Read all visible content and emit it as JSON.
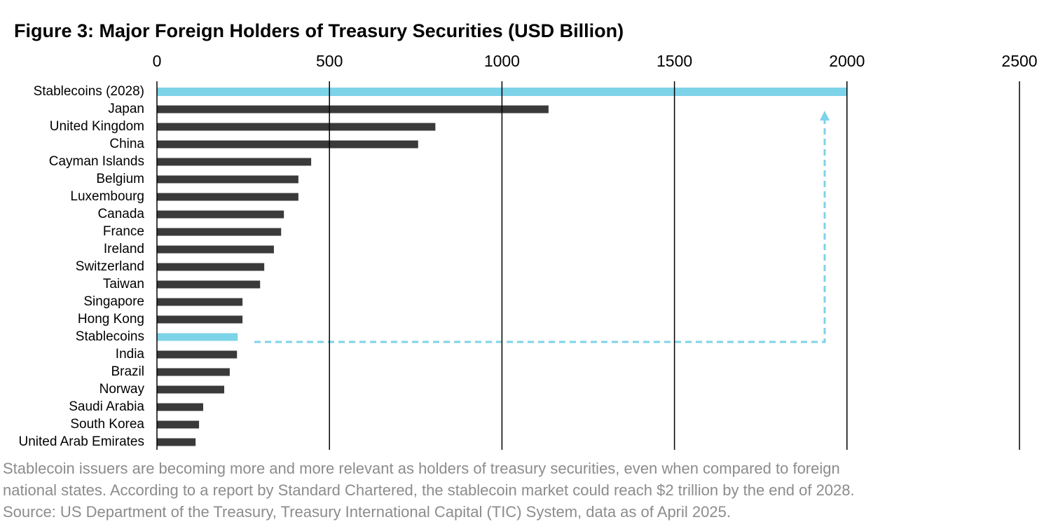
{
  "chart_data": {
    "type": "barh",
    "title": "Figure 3: Major Foreign Holders of Treasury Securities (USD Billion)",
    "categories": [
      "Stablecoins (2028)",
      "Japan",
      "United Kingdom",
      "China",
      "Cayman Islands",
      "Belgium",
      "Luxembourg",
      "Canada",
      "France",
      "Ireland",
      "Switzerland",
      "Taiwan",
      "Singapore",
      "Hong Kong",
      "Stablecoins",
      "India",
      "Brazil",
      "Norway",
      "Saudi Arabia",
      "South Korea",
      "United Arab Emirates"
    ],
    "values": [
      2000,
      1135,
      807,
      757,
      447,
      410,
      410,
      368,
      360,
      339,
      311,
      299,
      248,
      248,
      234,
      232,
      211,
      195,
      134,
      122,
      112
    ],
    "colors": [
      "#7dd3e8",
      "#3a3a3a",
      "#3a3a3a",
      "#3a3a3a",
      "#3a3a3a",
      "#3a3a3a",
      "#3a3a3a",
      "#3a3a3a",
      "#3a3a3a",
      "#3a3a3a",
      "#3a3a3a",
      "#3a3a3a",
      "#3a3a3a",
      "#3a3a3a",
      "#7dd3e8",
      "#3a3a3a",
      "#3a3a3a",
      "#3a3a3a",
      "#3a3a3a",
      "#3a3a3a",
      "#3a3a3a"
    ],
    "xlim": [
      0,
      2500
    ],
    "xticks": [
      0,
      500,
      1000,
      1500,
      2000,
      2500
    ],
    "grid": true,
    "notes": [
      "Stablecoin issuers are becoming more and more relevant as holders of treasury securities, even when compared to foreign",
      "national states. According to a report by Standard Chartered, the stablecoin market could reach $2 trillion by the end of 2028.",
      "Source: US Department of the Treasury, Treasury International Capital (TIC) System, data as of April 2025."
    ]
  }
}
